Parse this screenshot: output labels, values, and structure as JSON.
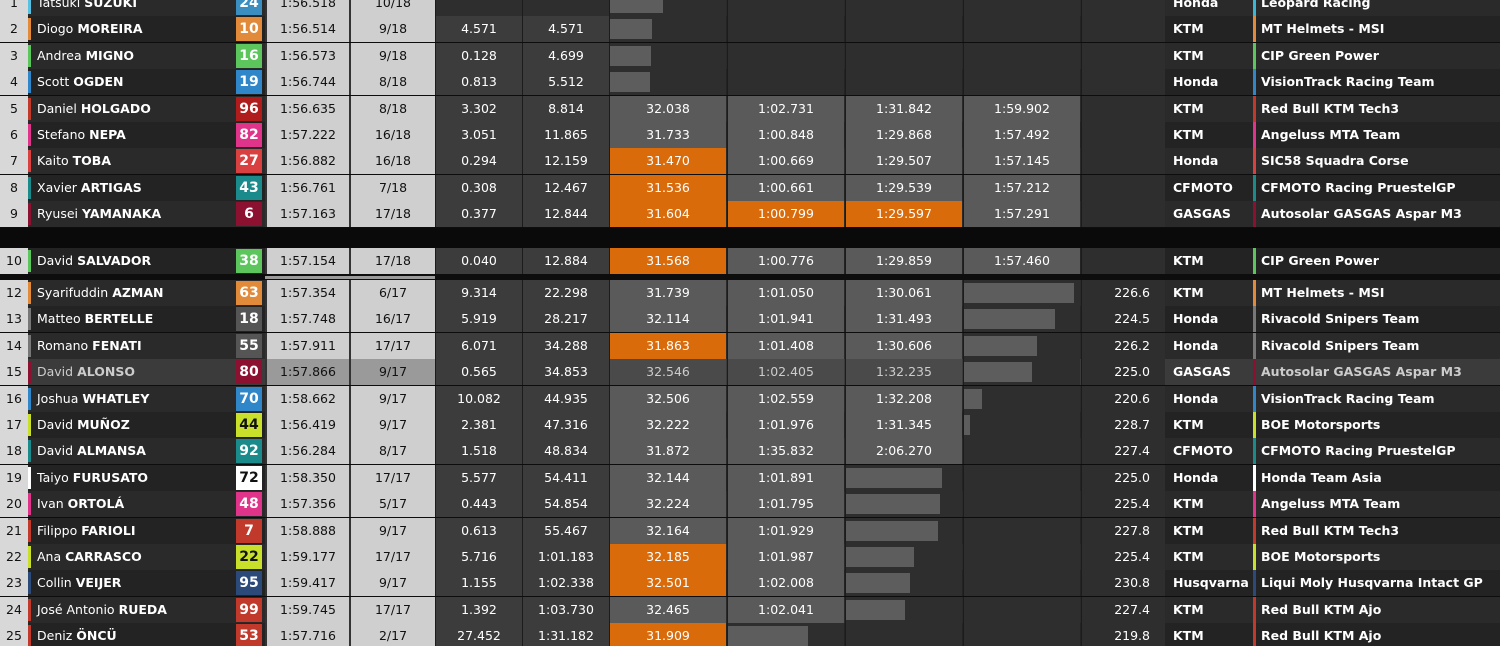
{
  "rows": [
    {
      "pos": "1",
      "first": "Tatsuki",
      "last": "SUZUKI",
      "num": "24",
      "numColor": "#3a8fc0",
      "best": "1:56.518",
      "laps": "10/18",
      "gap": "",
      "prev": "",
      "s1": "",
      "s2": "",
      "s3": "",
      "s4": "",
      "speed": "",
      "bike": "Honda",
      "team": "Leopard Racing",
      "teamColor": "#3ab7d6",
      "riderColor": "#58c0e0",
      "bar": {
        "col": "s1",
        "frac": 0.45
      },
      "hl": []
    },
    {
      "pos": "2",
      "first": "Diogo",
      "last": "MOREIRA",
      "num": "10",
      "numColor": "#e08a3a",
      "best": "1:56.514",
      "laps": "9/18",
      "gap": "4.571",
      "prev": "4.571",
      "s1": "",
      "s2": "",
      "s3": "",
      "s4": "",
      "speed": "",
      "bike": "KTM",
      "team": "MT Helmets - MSI",
      "teamColor": "#e08a3a",
      "riderColor": "#e08a3a",
      "bar": {
        "col": "s1",
        "frac": 0.36
      },
      "hl": []
    },
    {
      "pos": "3",
      "first": "Andrea",
      "last": "MIGNO",
      "num": "16",
      "numColor": "#5cc65c",
      "best": "1:56.573",
      "laps": "9/18",
      "gap": "0.128",
      "prev": "4.699",
      "s1": "",
      "s2": "",
      "s3": "",
      "s4": "",
      "speed": "",
      "bike": "KTM",
      "team": "CIP Green Power",
      "teamColor": "#5cc65c",
      "riderColor": "#5cc65c",
      "bar": {
        "col": "s1",
        "frac": 0.35
      },
      "hl": []
    },
    {
      "pos": "4",
      "first": "Scott",
      "last": "OGDEN",
      "num": "19",
      "numColor": "#2f86c8",
      "best": "1:56.744",
      "laps": "8/18",
      "gap": "0.813",
      "prev": "5.512",
      "s1": "",
      "s2": "",
      "s3": "",
      "s4": "",
      "speed": "",
      "bike": "Honda",
      "team": "VisionTrack Racing Team",
      "teamColor": "#2f86c8",
      "riderColor": "#2f86c8",
      "bar": {
        "col": "s1",
        "frac": 0.34
      },
      "hl": []
    },
    {
      "pos": "5",
      "first": "Daniel",
      "last": "HOLGADO",
      "num": "96",
      "numColor": "#b01c1c",
      "best": "1:56.635",
      "laps": "8/18",
      "gap": "3.302",
      "prev": "8.814",
      "s1": "32.038",
      "s2": "1:02.731",
      "s3": "1:31.842",
      "s4": "1:59.902",
      "speed": "",
      "bike": "KTM",
      "team": "Red Bull KTM Tech3",
      "teamColor": "#c0392b",
      "riderColor": "#c0392b",
      "bar": null,
      "hl": []
    },
    {
      "pos": "6",
      "first": "Stefano",
      "last": "NEPA",
      "num": "82",
      "numColor": "#e0338a",
      "best": "1:57.222",
      "laps": "16/18",
      "gap": "3.051",
      "prev": "11.865",
      "s1": "31.733",
      "s2": "1:00.848",
      "s3": "1:29.868",
      "s4": "1:57.492",
      "speed": "",
      "bike": "KTM",
      "team": "Angeluss MTA Team",
      "teamColor": "#e0338a",
      "riderColor": "#e0338a",
      "bar": null,
      "hl": []
    },
    {
      "pos": "7",
      "first": "Kaito",
      "last": "TOBA",
      "num": "27",
      "numColor": "#d94040",
      "best": "1:56.882",
      "laps": "16/18",
      "gap": "0.294",
      "prev": "12.159",
      "s1": "31.470",
      "s2": "1:00.669",
      "s3": "1:29.507",
      "s4": "1:57.145",
      "speed": "",
      "bike": "Honda",
      "team": "SIC58 Squadra Corse",
      "teamColor": "#d94040",
      "riderColor": "#d94040",
      "bar": null,
      "hl": [
        "s1"
      ]
    },
    {
      "pos": "8",
      "first": "Xavier",
      "last": "ARTIGAS",
      "num": "43",
      "numColor": "#1a8a8a",
      "best": "1:56.761",
      "laps": "7/18",
      "gap": "0.308",
      "prev": "12.467",
      "s1": "31.536",
      "s2": "1:00.661",
      "s3": "1:29.539",
      "s4": "1:57.212",
      "speed": "",
      "bike": "CFMOTO",
      "team": "CFMOTO Racing PruestelGP",
      "teamColor": "#1a8a8a",
      "riderColor": "#1a8a8a",
      "bar": null,
      "hl": [
        "s1"
      ]
    },
    {
      "pos": "9",
      "first": "Ryusei",
      "last": "YAMANAKA",
      "num": "6",
      "numColor": "#8c1030",
      "best": "1:57.163",
      "laps": "17/18",
      "gap": "0.377",
      "prev": "12.844",
      "s1": "31.604",
      "s2": "1:00.799",
      "s3": "1:29.597",
      "s4": "1:57.291",
      "speed": "",
      "bike": "GASGAS",
      "team": "Autosolar GASGAS Aspar M3",
      "teamColor": "#8c1030",
      "riderColor": "#8c1030",
      "bar": null,
      "hl": [
        "s1",
        "s2",
        "s3"
      ]
    },
    {
      "pos": "10",
      "first": "David",
      "last": "SALVADOR",
      "num": "38",
      "numColor": "#5cc65c",
      "best": "1:57.154",
      "laps": "17/18",
      "gap": "0.040",
      "prev": "12.884",
      "s1": "31.568",
      "s2": "1:00.776",
      "s3": "1:29.859",
      "s4": "1:57.460",
      "speed": "",
      "bike": "KTM",
      "team": "CIP Green Power",
      "teamColor": "#5cc65c",
      "riderColor": "#5cc65c",
      "bar": null,
      "hl": [
        "s1"
      ]
    },
    {
      "pos": "12",
      "first": "Syarifuddin",
      "last": "AZMAN",
      "num": "63",
      "numColor": "#e08a3a",
      "best": "1:57.354",
      "laps": "6/17",
      "gap": "9.314",
      "prev": "22.298",
      "s1": "31.739",
      "s2": "1:01.050",
      "s3": "1:30.061",
      "s4": "",
      "speed": "226.6",
      "bike": "KTM",
      "team": "MT Helmets - MSI",
      "teamColor": "#e08a3a",
      "riderColor": "#e08a3a",
      "bar": {
        "col": "s4",
        "frac": 0.94
      },
      "hl": []
    },
    {
      "pos": "13",
      "first": "Matteo",
      "last": "BERTELLE",
      "num": "18",
      "numColor": "#555",
      "best": "1:57.748",
      "laps": "16/17",
      "gap": "5.919",
      "prev": "28.217",
      "s1": "32.114",
      "s2": "1:01.941",
      "s3": "1:31.493",
      "s4": "",
      "speed": "224.5",
      "bike": "Honda",
      "team": "Rivacold Snipers Team",
      "teamColor": "#777",
      "riderColor": "#777",
      "bar": {
        "col": "s4",
        "frac": 0.78
      },
      "hl": []
    },
    {
      "pos": "14",
      "first": "Romano",
      "last": "FENATI",
      "num": "55",
      "numColor": "#555",
      "best": "1:57.911",
      "laps": "17/17",
      "gap": "6.071",
      "prev": "34.288",
      "s1": "31.863",
      "s2": "1:01.408",
      "s3": "1:30.606",
      "s4": "",
      "speed": "226.2",
      "bike": "Honda",
      "team": "Rivacold Snipers Team",
      "teamColor": "#777",
      "riderColor": "#777",
      "bar": {
        "col": "s4",
        "frac": 0.62
      },
      "hl": [
        "s1"
      ]
    },
    {
      "pos": "15",
      "first": "David",
      "last": "ALONSO",
      "num": "80",
      "numColor": "#8c1030",
      "best": "1:57.866",
      "laps": "9/17",
      "gap": "0.565",
      "prev": "34.853",
      "s1": "32.546",
      "s2": "1:02.405",
      "s3": "1:32.235",
      "s4": "",
      "speed": "225.0",
      "bike": "GASGAS",
      "team": "Autosolar GASGAS Aspar M3",
      "teamColor": "#8c1030",
      "riderColor": "#8c1030",
      "bar": {
        "col": "s4",
        "frac": 0.58
      },
      "hl": [],
      "dim": true
    },
    {
      "pos": "16",
      "first": "Joshua",
      "last": "WHATLEY",
      "num": "70",
      "numColor": "#2f86c8",
      "best": "1:58.662",
      "laps": "9/17",
      "gap": "10.082",
      "prev": "44.935",
      "s1": "32.506",
      "s2": "1:02.559",
      "s3": "1:32.208",
      "s4": "",
      "speed": "220.6",
      "bike": "Honda",
      "team": "VisionTrack Racing Team",
      "teamColor": "#2f86c8",
      "riderColor": "#2f86c8",
      "bar": {
        "col": "s4",
        "frac": 0.15
      },
      "hl": []
    },
    {
      "pos": "17",
      "first": "David",
      "last": "MUÑOZ",
      "num": "44",
      "numColor": "#c8e02a",
      "best": "1:56.419",
      "laps": "9/17",
      "gap": "2.381",
      "prev": "47.316",
      "s1": "32.222",
      "s2": "1:01.976",
      "s3": "1:31.345",
      "s4": "",
      "speed": "228.7",
      "bike": "KTM",
      "team": "BOE Motorsports",
      "teamColor": "#c8e02a",
      "riderColor": "#c8e02a",
      "bar": {
        "col": "s4",
        "frac": 0.05
      },
      "hl": []
    },
    {
      "pos": "18",
      "first": "David",
      "last": "ALMANSA",
      "num": "92",
      "numColor": "#1a8a8a",
      "best": "1:56.284",
      "laps": "8/17",
      "gap": "1.518",
      "prev": "48.834",
      "s1": "31.872",
      "s2": "1:35.832",
      "s3": "2:06.270",
      "s4": "",
      "speed": "227.4",
      "bike": "CFMOTO",
      "team": "CFMOTO Racing PruestelGP",
      "teamColor": "#1a8a8a",
      "riderColor": "#1a8a8a",
      "bar": null,
      "hl": []
    },
    {
      "pos": "19",
      "first": "Taiyo",
      "last": "FURUSATO",
      "num": "72",
      "numColor": "#ffffff",
      "best": "1:58.350",
      "laps": "17/17",
      "gap": "5.577",
      "prev": "54.411",
      "s1": "32.144",
      "s2": "1:01.891",
      "s3": "",
      "s4": "",
      "speed": "225.0",
      "bike": "Honda",
      "team": "Honda Team Asia",
      "teamColor": "#ffffff",
      "riderColor": "#ffffff",
      "bar": {
        "col": "s3",
        "frac": 0.82
      },
      "hl": []
    },
    {
      "pos": "20",
      "first": "Ivan",
      "last": "ORTOLÁ",
      "num": "48",
      "numColor": "#e0338a",
      "best": "1:57.356",
      "laps": "5/17",
      "gap": "0.443",
      "prev": "54.854",
      "s1": "32.224",
      "s2": "1:01.795",
      "s3": "",
      "s4": "",
      "speed": "225.4",
      "bike": "KTM",
      "team": "Angeluss MTA Team",
      "teamColor": "#e0338a",
      "riderColor": "#e0338a",
      "bar": {
        "col": "s3",
        "frac": 0.8
      },
      "hl": []
    },
    {
      "pos": "21",
      "first": "Filippo",
      "last": "FARIOLI",
      "num": "7",
      "numColor": "#c0392b",
      "best": "1:58.888",
      "laps": "9/17",
      "gap": "0.613",
      "prev": "55.467",
      "s1": "32.164",
      "s2": "1:01.929",
      "s3": "",
      "s4": "",
      "speed": "227.8",
      "bike": "KTM",
      "team": "Red Bull KTM Tech3",
      "teamColor": "#c0392b",
      "riderColor": "#c0392b",
      "bar": {
        "col": "s3",
        "frac": 0.79
      },
      "hl": []
    },
    {
      "pos": "22",
      "first": "Ana",
      "last": "CARRASCO",
      "num": "22",
      "numColor": "#c8e02a",
      "best": "1:59.177",
      "laps": "17/17",
      "gap": "5.716",
      "prev": "1:01.183",
      "s1": "32.185",
      "s2": "1:01.987",
      "s3": "",
      "s4": "",
      "speed": "225.4",
      "bike": "KTM",
      "team": "BOE Motorsports",
      "teamColor": "#c8e02a",
      "riderColor": "#c8e02a",
      "bar": {
        "col": "s3",
        "frac": 0.58
      },
      "hl": [
        "s1"
      ]
    },
    {
      "pos": "23",
      "first": "Collin",
      "last": "VEIJER",
      "num": "95",
      "numColor": "#2b4a7a",
      "best": "1:59.417",
      "laps": "9/17",
      "gap": "1.155",
      "prev": "1:02.338",
      "s1": "32.501",
      "s2": "1:02.008",
      "s3": "",
      "s4": "",
      "speed": "230.8",
      "bike": "Husqvarna",
      "team": "Liqui Moly Husqvarna Intact GP",
      "teamColor": "#2b4a7a",
      "riderColor": "#2b4a7a",
      "bar": {
        "col": "s3",
        "frac": 0.55
      },
      "hl": [
        "s1"
      ]
    },
    {
      "pos": "24",
      "first": "José Antonio",
      "last": "RUEDA",
      "num": "99",
      "numColor": "#c0392b",
      "best": "1:59.745",
      "laps": "17/17",
      "gap": "1.392",
      "prev": "1:03.730",
      "s1": "32.465",
      "s2": "1:02.041",
      "s3": "",
      "s4": "",
      "speed": "227.4",
      "bike": "KTM",
      "team": "Red Bull KTM Ajo",
      "teamColor": "#c0392b",
      "riderColor": "#c0392b",
      "bar": {
        "col": "s3",
        "frac": 0.5
      },
      "hl": []
    },
    {
      "pos": "25",
      "first": "Deniz",
      "last": "ÖNCÜ",
      "num": "53",
      "numColor": "#c0392b",
      "best": "1:57.716",
      "laps": "2/17",
      "gap": "27.452",
      "prev": "1:31.182",
      "s1": "31.909",
      "s2": "",
      "s3": "",
      "s4": "",
      "speed": "219.8",
      "bike": "KTM",
      "team": "Red Bull KTM Ajo",
      "teamColor": "#c0392b",
      "riderColor": "#c0392b",
      "bar": {
        "col": "s2",
        "frac": 0.68
      },
      "hl": [
        "s1"
      ]
    }
  ]
}
